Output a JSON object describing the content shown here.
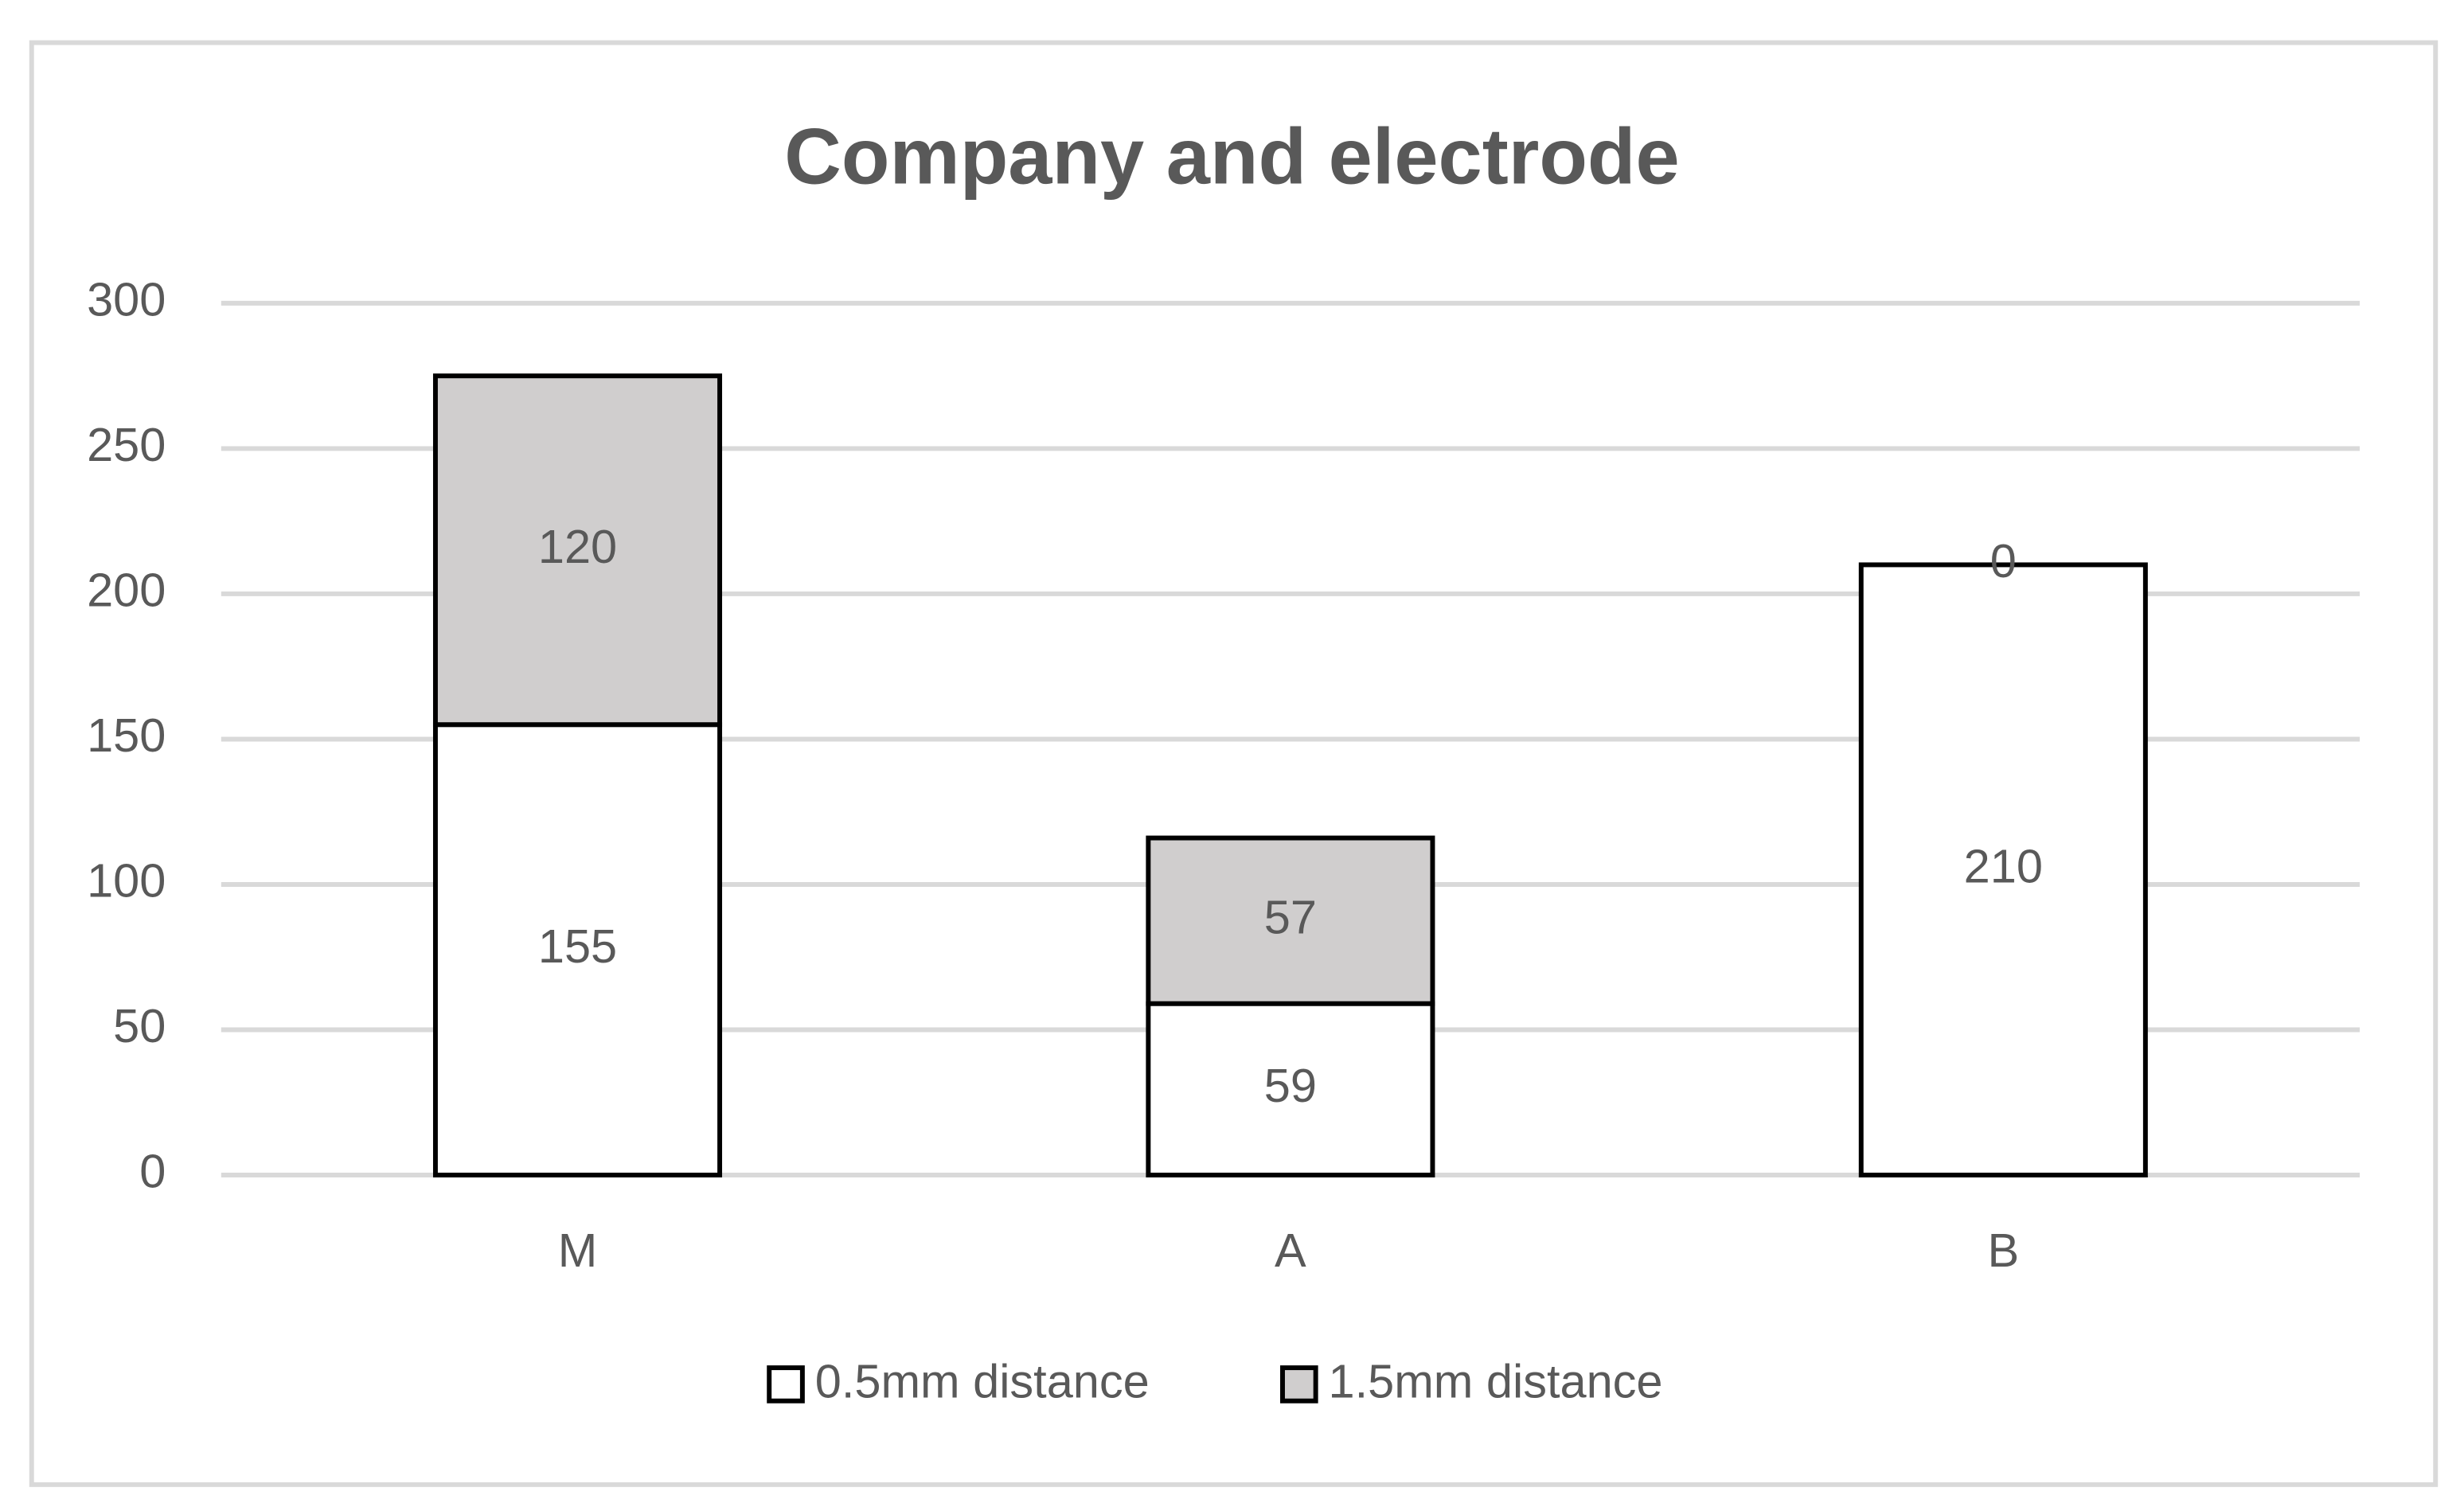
{
  "chart_data": {
    "type": "stacked_bar",
    "title": "Company and electrode",
    "categories": [
      "M",
      "A",
      "B"
    ],
    "series": [
      {
        "name": "0.5mm distance",
        "color": "#ffffff",
        "values": [
          155,
          59,
          210
        ]
      },
      {
        "name": "1.5mm distance",
        "color": "#d0cece",
        "values": [
          120,
          57,
          0
        ]
      }
    ],
    "ylim": [
      0,
      300
    ],
    "yticks": [
      0,
      50,
      100,
      150,
      200,
      250,
      300
    ],
    "grid": true,
    "legend": "bottom"
  }
}
